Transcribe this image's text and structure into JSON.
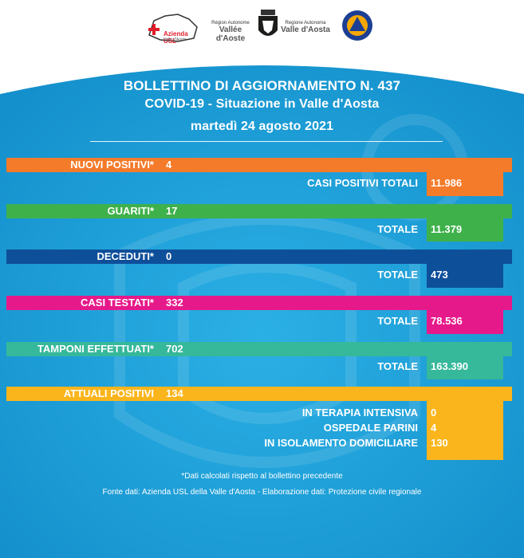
{
  "header": {
    "logo_usl_text": "Azienda USL",
    "logo_usl_sub": "Valle d'Aosta",
    "logo_region_small": "Région Autonome",
    "logo_region_big": "Vallée d'Aoste",
    "logo_region_small2": "Regione Autonoma",
    "logo_region_big2": "Valle d'Aosta"
  },
  "bulletin": {
    "title": "BOLLETTINO DI AGGIORNAMENTO N. 437",
    "subtitle": "COVID-19 - Situazione in Valle d'Aosta",
    "date": "martedì 24 agosto 2021"
  },
  "rows": {
    "nuovi": {
      "label": "NUOVI POSITIVI*",
      "value": "4",
      "total_label": "CASI POSITIVI TOTALI",
      "total_value": "11.986"
    },
    "guariti": {
      "label": "GUARITI*",
      "value": "17",
      "total_label": "TOTALE",
      "total_value": "11.379"
    },
    "deceduti": {
      "label": "DECEDUTI*",
      "value": "0",
      "total_label": "TOTALE",
      "total_value": "473"
    },
    "testati": {
      "label": "CASI TESTATI*",
      "value": "332",
      "total_label": "TOTALE",
      "total_value": "78.536"
    },
    "tamponi": {
      "label": "TAMPONI EFFETTUATI*",
      "value": "702",
      "total_label": "TOTALE",
      "total_value": "163.390"
    },
    "attuali": {
      "label": "ATTUALI POSITIVI",
      "value": "134",
      "details": [
        {
          "label": "IN TERAPIA INTENSIVA",
          "value": "0"
        },
        {
          "label": "OSPEDALE PARINI",
          "value": "4"
        },
        {
          "label": "IN ISOLAMENTO DOMICILIARE",
          "value": "130"
        }
      ]
    }
  },
  "footer": {
    "note": "*Dati calcolati rispetto al bollettino precedente",
    "source": "Fonte dati: Azienda USL della Valle d'Aosta - Elaborazione dati: Protezione civile regionale"
  },
  "colors": {
    "background_blue": "#1ea3db",
    "orange": "#f47b2a",
    "green": "#3fb14b",
    "dark_blue": "#0e4f9a",
    "magenta": "#e6198a",
    "teal": "#36b89a",
    "yellow": "#fbb51c"
  }
}
